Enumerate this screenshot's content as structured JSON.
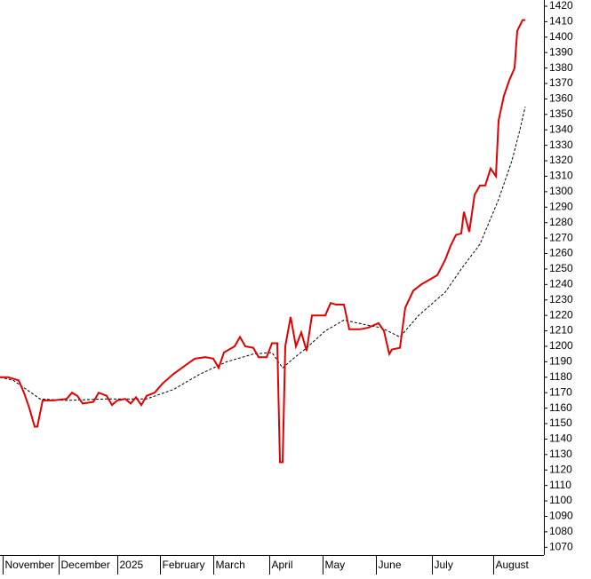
{
  "chart_data": {
    "type": "line",
    "ylim": [
      1065,
      1424
    ],
    "yticks": [
      1070,
      1080,
      1090,
      1100,
      1110,
      1120,
      1130,
      1140,
      1150,
      1160,
      1170,
      1180,
      1190,
      1200,
      1210,
      1220,
      1230,
      1240,
      1250,
      1260,
      1270,
      1280,
      1290,
      1300,
      1310,
      1320,
      1330,
      1340,
      1350,
      1360,
      1370,
      1380,
      1390,
      1400,
      1410,
      1420
    ],
    "xlim": [
      0,
      204
    ],
    "xticks": [
      {
        "value": 1,
        "label": "November"
      },
      {
        "value": 22,
        "label": "December"
      },
      {
        "value": 44,
        "label": "2025"
      },
      {
        "value": 60,
        "label": "February"
      },
      {
        "value": 80,
        "label": "March"
      },
      {
        "value": 101,
        "label": "April"
      },
      {
        "value": 121,
        "label": "May"
      },
      {
        "value": 141,
        "label": "June"
      },
      {
        "value": 162,
        "label": "July"
      },
      {
        "value": 185,
        "label": "August"
      }
    ],
    "grid": false,
    "series": [
      {
        "color": "#e00000",
        "style": "solid",
        "x": [
          0,
          3,
          7,
          9,
          11,
          13,
          14,
          16,
          20,
          25,
          27,
          29,
          31,
          35,
          37,
          40,
          42,
          44,
          47,
          49,
          51,
          53,
          55,
          58,
          61,
          65,
          69,
          73,
          77,
          80,
          82,
          84,
          88,
          90,
          92,
          95,
          97,
          100,
          102,
          104,
          105,
          106,
          107,
          109,
          111,
          113,
          115,
          117,
          119,
          122,
          124,
          126,
          129,
          131,
          135,
          138,
          142,
          144,
          146,
          147,
          150,
          152,
          155,
          158,
          161,
          164,
          167,
          169,
          171,
          173,
          174,
          176,
          178,
          180,
          182,
          184,
          186,
          187,
          189,
          191,
          193,
          194,
          196,
          197
        ],
        "values": [
          1180,
          1180,
          1178,
          1170,
          1160,
          1148,
          1148,
          1165,
          1165,
          1166,
          1170,
          1168,
          1163,
          1164,
          1170,
          1168,
          1162,
          1165,
          1166,
          1163,
          1167,
          1162,
          1168,
          1170,
          1176,
          1182,
          1187,
          1192,
          1193,
          1192,
          1186,
          1196,
          1200,
          1206,
          1200,
          1199,
          1193,
          1193,
          1202,
          1202,
          1125,
          1125,
          1200,
          1219,
          1200,
          1209,
          1197,
          1220,
          1220,
          1220,
          1228,
          1227,
          1227,
          1211,
          1211,
          1212,
          1215,
          1210,
          1195,
          1198,
          1199,
          1225,
          1236,
          1240,
          1243,
          1246,
          1256,
          1265,
          1272,
          1273,
          1287,
          1274,
          1298,
          1304,
          1304,
          1315,
          1310,
          1346,
          1362,
          1372,
          1380,
          1404,
          1411,
          1411
        ]
      },
      {
        "color": "#000000",
        "style": "dashed",
        "x": [
          0,
          5,
          10,
          15,
          25,
          40,
          55,
          65,
          75,
          85,
          95,
          102,
          106,
          110,
          115,
          122,
          129,
          137,
          143,
          150,
          157,
          167,
          173,
          180,
          187,
          192,
          195,
          197
        ],
        "values": [
          1180,
          1178,
          1172,
          1166,
          1165,
          1166,
          1166,
          1172,
          1182,
          1190,
          1195,
          1196,
          1186,
          1192,
          1199,
          1210,
          1217,
          1214,
          1212,
          1206,
          1220,
          1235,
          1250,
          1266,
          1295,
          1320,
          1340,
          1355
        ]
      }
    ]
  }
}
